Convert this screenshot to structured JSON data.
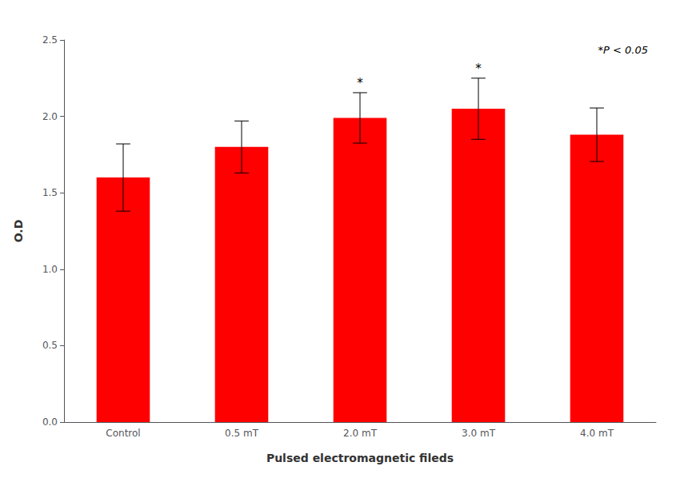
{
  "chart_data": {
    "type": "bar",
    "categories": [
      "Control",
      "0.5 mT",
      "2.0 mT",
      "3.0 mT",
      "4.0 mT"
    ],
    "values": [
      1.6,
      1.8,
      1.99,
      2.05,
      1.88
    ],
    "errors": [
      0.22,
      0.17,
      0.165,
      0.2,
      0.175
    ],
    "significance": [
      null,
      null,
      "*",
      "*",
      null
    ],
    "annotation": "*P < 0.05",
    "color": "#FF0000",
    "xlabel": "Pulsed electromagnetic fileds",
    "ylabel": "O.D",
    "ylim": [
      0.0,
      2.5
    ],
    "yticks": [
      {
        "value": 0.0,
        "label": "0.0"
      },
      0.5,
      {
        "value": 1.0,
        "label": "1.0"
      },
      1.5,
      {
        "value": 2.0,
        "label": "2.0"
      },
      2.5
    ],
    "grid": false
  }
}
